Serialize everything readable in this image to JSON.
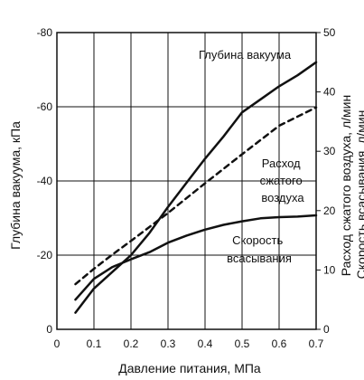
{
  "chart_data": {
    "type": "line",
    "title": "",
    "xlabel": "Давление питания, МПа",
    "ylabel_left": "Глубина вакуума, кПа",
    "ylabel_right": "Расход сжатого воздуха, л/мин",
    "ylabel_right2": "Скорость всасывания, л/мин",
    "xlim": [
      0,
      0.7
    ],
    "ylim_left": [
      0,
      -80
    ],
    "ylim_right": [
      0,
      50
    ],
    "x_ticks": [
      "0",
      "0.1",
      "0.2",
      "0.3",
      "0.4",
      "0.5",
      "0.6",
      "0.7"
    ],
    "y_ticks_left": [
      "0",
      "-20",
      "-40",
      "-60",
      "-80"
    ],
    "y_ticks_right": [
      "0",
      "10",
      "20",
      "30",
      "40",
      "50"
    ],
    "grid": true,
    "series": [
      {
        "name": "Глубина вакуума",
        "axis": "left",
        "style": "solid",
        "x": [
          0.05,
          0.1,
          0.15,
          0.2,
          0.25,
          0.3,
          0.35,
          0.4,
          0.45,
          0.5,
          0.55,
          0.6,
          0.65,
          0.7
        ],
        "y": [
          -4.5,
          -11,
          -15.5,
          -20,
          -26,
          -33,
          -39.5,
          -46,
          -52,
          -58.5,
          -62,
          -65.5,
          -68.5,
          -72
        ]
      },
      {
        "name": "Скорость всасывания",
        "axis": "right",
        "style": "solid",
        "x": [
          0.05,
          0.1,
          0.15,
          0.2,
          0.25,
          0.3,
          0.35,
          0.4,
          0.45,
          0.5,
          0.55,
          0.6,
          0.65,
          0.7
        ],
        "y": [
          5,
          8.5,
          10.5,
          11.8,
          13,
          14.6,
          15.8,
          16.8,
          17.6,
          18.2,
          18.7,
          18.9,
          19,
          19.2
        ]
      },
      {
        "name": "Расход сжатого воздуха",
        "axis": "right",
        "style": "dashed",
        "x": [
          0.05,
          0.1,
          0.15,
          0.2,
          0.3,
          0.4,
          0.5,
          0.6,
          0.7
        ],
        "y": [
          7.6,
          10.2,
          12.6,
          14.9,
          19.6,
          24.6,
          29.5,
          34.3,
          37.4
        ]
      }
    ],
    "annotations": [
      {
        "text": "Глубина вакуума"
      },
      {
        "lines": [
          "Расход",
          "сжатого",
          "воздуха"
        ]
      },
      {
        "lines": [
          "Скорость",
          "всасывания"
        ]
      }
    ]
  }
}
